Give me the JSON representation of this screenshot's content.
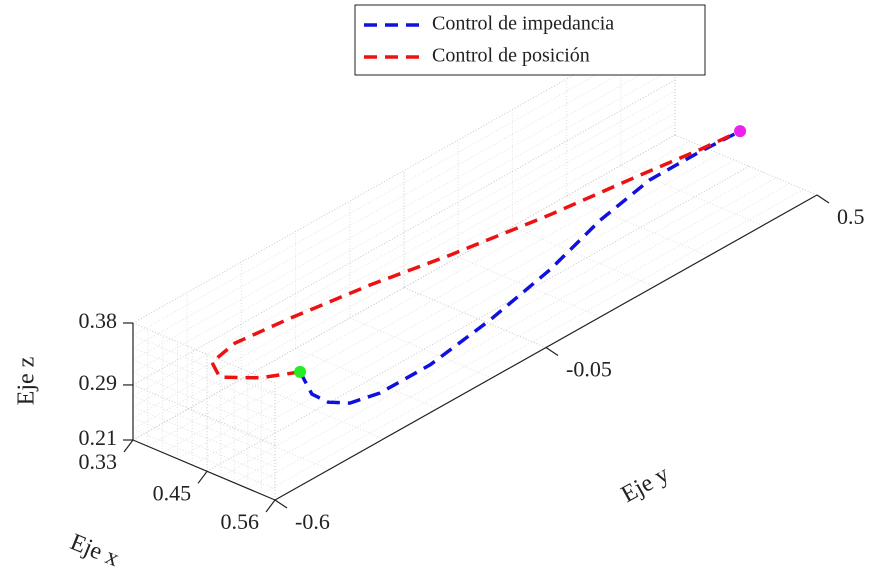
{
  "chart_data": {
    "type": "line3d",
    "xlabel": "Eje x",
    "ylabel": "Eje y",
    "zlabel": "Eje z",
    "xlim": [
      0.33,
      0.56
    ],
    "xticks": [
      0.33,
      0.45,
      0.56
    ],
    "ylim": [
      -0.6,
      0.5
    ],
    "yticks": [
      -0.6,
      -0.05,
      0.5
    ],
    "zlim": [
      0.21,
      0.38
    ],
    "zticks": [
      0.21,
      0.29,
      0.38
    ],
    "grid": true,
    "minor_grid": true,
    "legend_position": "top",
    "series": [
      {
        "name": "Control de impedancia",
        "color": "#1010e0",
        "dash": "dashed",
        "x": [
          0.445,
          0.445,
          0.445,
          0.445,
          0.445,
          0.445,
          0.445,
          0.445,
          0.445,
          0.445,
          0.445,
          0.445
        ],
        "y": [
          -0.405,
          -0.381,
          -0.348,
          -0.304,
          -0.243,
          -0.141,
          -0.02,
          0.102,
          0.204,
          0.305,
          0.407,
          0.488
        ],
        "z": [
          0.274,
          0.232,
          0.207,
          0.188,
          0.178,
          0.178,
          0.194,
          0.218,
          0.249,
          0.267,
          0.267,
          0.264
        ]
      },
      {
        "name": "Control de posición",
        "color": "#ee1111",
        "dash": "dashed",
        "x": [
          0.445,
          0.445,
          0.445,
          0.445,
          0.445,
          0.445,
          0.445,
          0.445,
          0.445,
          0.445,
          0.445,
          0.445
        ],
        "y": [
          -0.405,
          -0.486,
          -0.568,
          -0.584,
          -0.537,
          -0.425,
          -0.263,
          -0.101,
          0.102,
          0.285,
          0.407,
          0.488
        ],
        "z": [
          0.274,
          0.298,
          0.332,
          0.36,
          0.369,
          0.36,
          0.343,
          0.321,
          0.298,
          0.282,
          0.27,
          0.264
        ]
      }
    ],
    "markers": [
      {
        "x": 0.445,
        "y": -0.405,
        "z": 0.274,
        "color": "#22ee22"
      },
      {
        "x": 0.445,
        "y": 0.488,
        "z": 0.264,
        "color": "#ee22ee"
      }
    ]
  }
}
